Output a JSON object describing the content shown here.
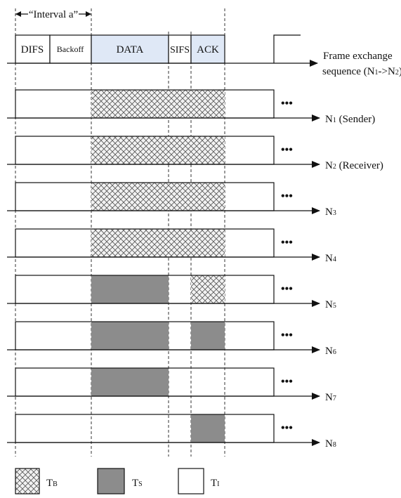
{
  "interval_label": "“Interval a”",
  "phases": [
    "DIFS",
    "Backoff",
    "DATA",
    "SIFS",
    "ACK"
  ],
  "top_label": [
    "Frame exchange",
    "sequence (N",
    "1",
    "->N",
    "2",
    ")"
  ],
  "ellipsis": "•••",
  "nodes": [
    {
      "name": "N",
      "sub": "1",
      "suffix": " (Sender)",
      "data": "busy",
      "sifs": "busy",
      "ack": "busy"
    },
    {
      "name": "N",
      "sub": "2",
      "suffix": " (Receiver)",
      "data": "busy",
      "sifs": "busy",
      "ack": "busy"
    },
    {
      "name": "N",
      "sub": "3",
      "suffix": "",
      "data": "busy",
      "sifs": "busy",
      "ack": "busy"
    },
    {
      "name": "N",
      "sub": "4",
      "suffix": "",
      "data": "busy",
      "sifs": "busy",
      "ack": "busy"
    },
    {
      "name": "N",
      "sub": "5",
      "suffix": "",
      "data": "success",
      "sifs": "idle",
      "ack": "busy"
    },
    {
      "name": "N",
      "sub": "6",
      "suffix": "",
      "data": "success",
      "sifs": "idle",
      "ack": "success"
    },
    {
      "name": "N",
      "sub": "7",
      "suffix": "",
      "data": "success",
      "sifs": "idle",
      "ack": "idle"
    },
    {
      "name": "N",
      "sub": "8",
      "suffix": "",
      "data": "idle",
      "sifs": "idle",
      "ack": "success"
    }
  ],
  "legend": [
    {
      "kind": "busy",
      "label": "T",
      "sub": "B"
    },
    {
      "kind": "success",
      "label": "T",
      "sub": "S"
    },
    {
      "kind": "idle",
      "label": "T",
      "sub": "I"
    }
  ],
  "colors": {
    "line": "#111111",
    "success_fill": "#8c8c8c",
    "busy_hatch": "#555555",
    "busy_bg": "#f2f2f2",
    "data_header_fill": "#dfe8f6"
  }
}
